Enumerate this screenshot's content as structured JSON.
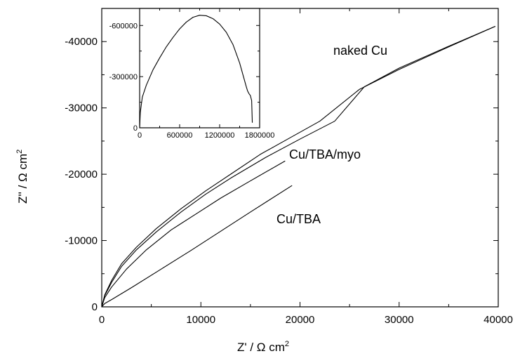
{
  "chart_data": {
    "type": "line",
    "xlabel": "Z' / Ω cm",
    "xlabel_sup": "2",
    "ylabel": "Z'' / Ω cm",
    "ylabel_sup": "2",
    "xlim": [
      0,
      40000
    ],
    "ylim": [
      0,
      -45000
    ],
    "x_ticks": [
      0,
      10000,
      20000,
      30000,
      40000
    ],
    "x_tick_labels": [
      "0",
      "10000",
      "20000",
      "30000",
      "40000"
    ],
    "y_ticks": [
      0,
      -10000,
      -20000,
      -30000,
      -40000
    ],
    "y_tick_labels": [
      "0",
      "-10000",
      "-20000",
      "-30000",
      "-40000"
    ],
    "series": [
      {
        "name": "naked Cu",
        "x": [
          0,
          300,
          1000,
          2000,
          3500,
          5500,
          8000,
          10500,
          13000,
          16000,
          19000,
          22000,
          26000,
          30000,
          35000,
          39700
        ],
        "y": [
          0,
          -1800,
          -4000,
          -6500,
          -9000,
          -11800,
          -14800,
          -17500,
          -20000,
          -23000,
          -25500,
          -28000,
          -32800,
          -35800,
          -39200,
          -42300
        ]
      },
      {
        "name": "",
        "x": [
          0,
          300,
          1000,
          2000,
          3500,
          5500,
          8000,
          10500,
          13000,
          16500,
          20000,
          23500,
          26500,
          30000,
          35000,
          39700
        ],
        "y": [
          0,
          -1700,
          -3700,
          -6100,
          -8600,
          -11300,
          -14300,
          -17000,
          -19400,
          -22500,
          -25300,
          -28000,
          -33200,
          -36000,
          -39300,
          -42300
        ]
      },
      {
        "name": "Cu/TBA/myo",
        "x": [
          0,
          300,
          1000,
          2500,
          4500,
          7000,
          9500,
          12000,
          15000,
          18500
        ],
        "y": [
          0,
          -1400,
          -3000,
          -5700,
          -8600,
          -11600,
          -14000,
          -16400,
          -19000,
          -22000
        ]
      },
      {
        "name": "Cu/TBA",
        "x": [
          0,
          300,
          1000,
          3000,
          6000,
          9000,
          12000,
          15000,
          19200
        ],
        "y": [
          0,
          -500,
          -1100,
          -2900,
          -5700,
          -8500,
          -11400,
          -14300,
          -18300
        ]
      }
    ],
    "annotations": [
      "naked Cu",
      "Cu/TBA/myo",
      "Cu/TBA"
    ],
    "inset": {
      "type": "line",
      "xlim": [
        0,
        1800000
      ],
      "ylim": [
        0,
        -700000
      ],
      "x_ticks": [
        0,
        600000,
        1200000,
        1800000
      ],
      "x_tick_labels": [
        "0",
        "600000",
        "1200000",
        "1800000"
      ],
      "y_ticks": [
        0,
        -300000,
        -600000
      ],
      "y_tick_labels": [
        "0",
        "-300000",
        "-600000"
      ],
      "series": [
        {
          "name": "",
          "x": [
            0,
            10000,
            40000,
            100000,
            200000,
            300000,
            400000,
            500000,
            600000,
            700000,
            800000,
            900000,
            1000000,
            1100000,
            1200000,
            1300000,
            1400000,
            1500000,
            1550000,
            1600000,
            1620000,
            1640000,
            1660000,
            1680000,
            1690000
          ],
          "y": [
            0,
            -90000,
            -180000,
            -250000,
            -340000,
            -410000,
            -475000,
            -530000,
            -580000,
            -620000,
            -648000,
            -660000,
            -657000,
            -640000,
            -608000,
            -560000,
            -488000,
            -380000,
            -310000,
            -240000,
            -215000,
            -200000,
            -190000,
            -160000,
            -30000
          ]
        }
      ]
    }
  }
}
